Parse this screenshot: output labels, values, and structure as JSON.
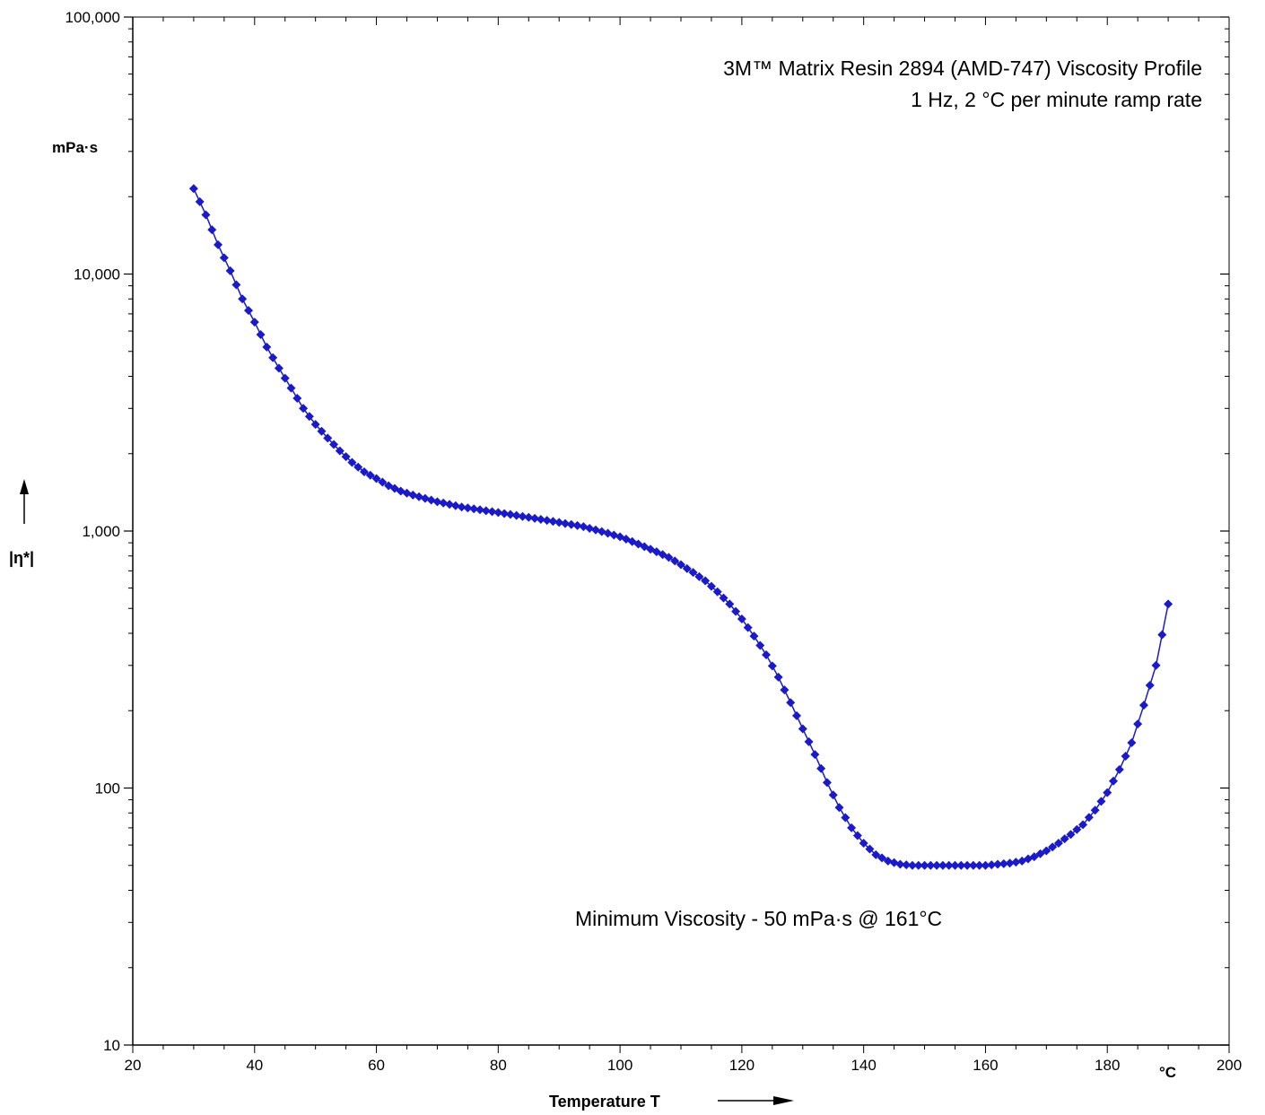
{
  "chart_data": {
    "type": "line",
    "title_line1": "3M™ Matrix Resin 2894 (AMD-747) Viscosity Profile",
    "title_line2": "1 Hz, 2 °C per minute ramp rate",
    "xlabel": "Temperature T",
    "x_unit": "°C",
    "ylabel": "|η*|",
    "y_unit": "mPa·s",
    "annotation": "Minimum Viscosity - 50 mPa·s @ 161°C",
    "xlim": [
      20,
      200
    ],
    "ylim": [
      10,
      100000
    ],
    "y_scale": "log",
    "x_ticks": [
      "20",
      "40",
      "60",
      "80",
      "100",
      "120",
      "140",
      "160",
      "180",
      "200"
    ],
    "y_ticks": [
      {
        "value": 10,
        "label": "10"
      },
      {
        "value": 100,
        "label": "100"
      },
      {
        "value": 1000,
        "label": "1,000"
      },
      {
        "value": 10000,
        "label": "10,000"
      },
      {
        "value": 100000,
        "label": "100,000"
      }
    ],
    "grid": false,
    "marker": "diamond",
    "series_color": "#1a1ac8",
    "series": [
      {
        "x": [
          30,
          32,
          34,
          36,
          38,
          40,
          42,
          44,
          46,
          48,
          50,
          52,
          54,
          56,
          58,
          60,
          62,
          64,
          66,
          68,
          70,
          72,
          74,
          76,
          78,
          80,
          82,
          84,
          86,
          88,
          90,
          92,
          94,
          96,
          98,
          100,
          102,
          104,
          106,
          108,
          110,
          112,
          114,
          116,
          118,
          120,
          122,
          124,
          126,
          128,
          130,
          132,
          134,
          136,
          138,
          140,
          142,
          144,
          146,
          148,
          150,
          152,
          154,
          156,
          158,
          160,
          162,
          164,
          166,
          168,
          170,
          172,
          174,
          176,
          178,
          180,
          182,
          184,
          186,
          188,
          190
        ],
        "y": [
          21500,
          17000,
          13000,
          10300,
          8000,
          6500,
          5200,
          4300,
          3600,
          3000,
          2600,
          2300,
          2050,
          1850,
          1700,
          1600,
          1500,
          1430,
          1380,
          1340,
          1300,
          1270,
          1240,
          1220,
          1200,
          1180,
          1160,
          1140,
          1120,
          1100,
          1080,
          1060,
          1040,
          1010,
          980,
          950,
          910,
          870,
          830,
          790,
          740,
          690,
          640,
          580,
          520,
          455,
          390,
          330,
          270,
          215,
          170,
          135,
          105,
          84,
          70,
          61,
          55,
          52,
          50.5,
          50,
          50,
          50,
          50,
          50,
          50,
          50,
          50.5,
          51,
          52,
          54,
          57,
          61,
          66,
          72,
          82,
          96,
          118,
          150,
          210,
          300,
          520
        ]
      }
    ]
  }
}
